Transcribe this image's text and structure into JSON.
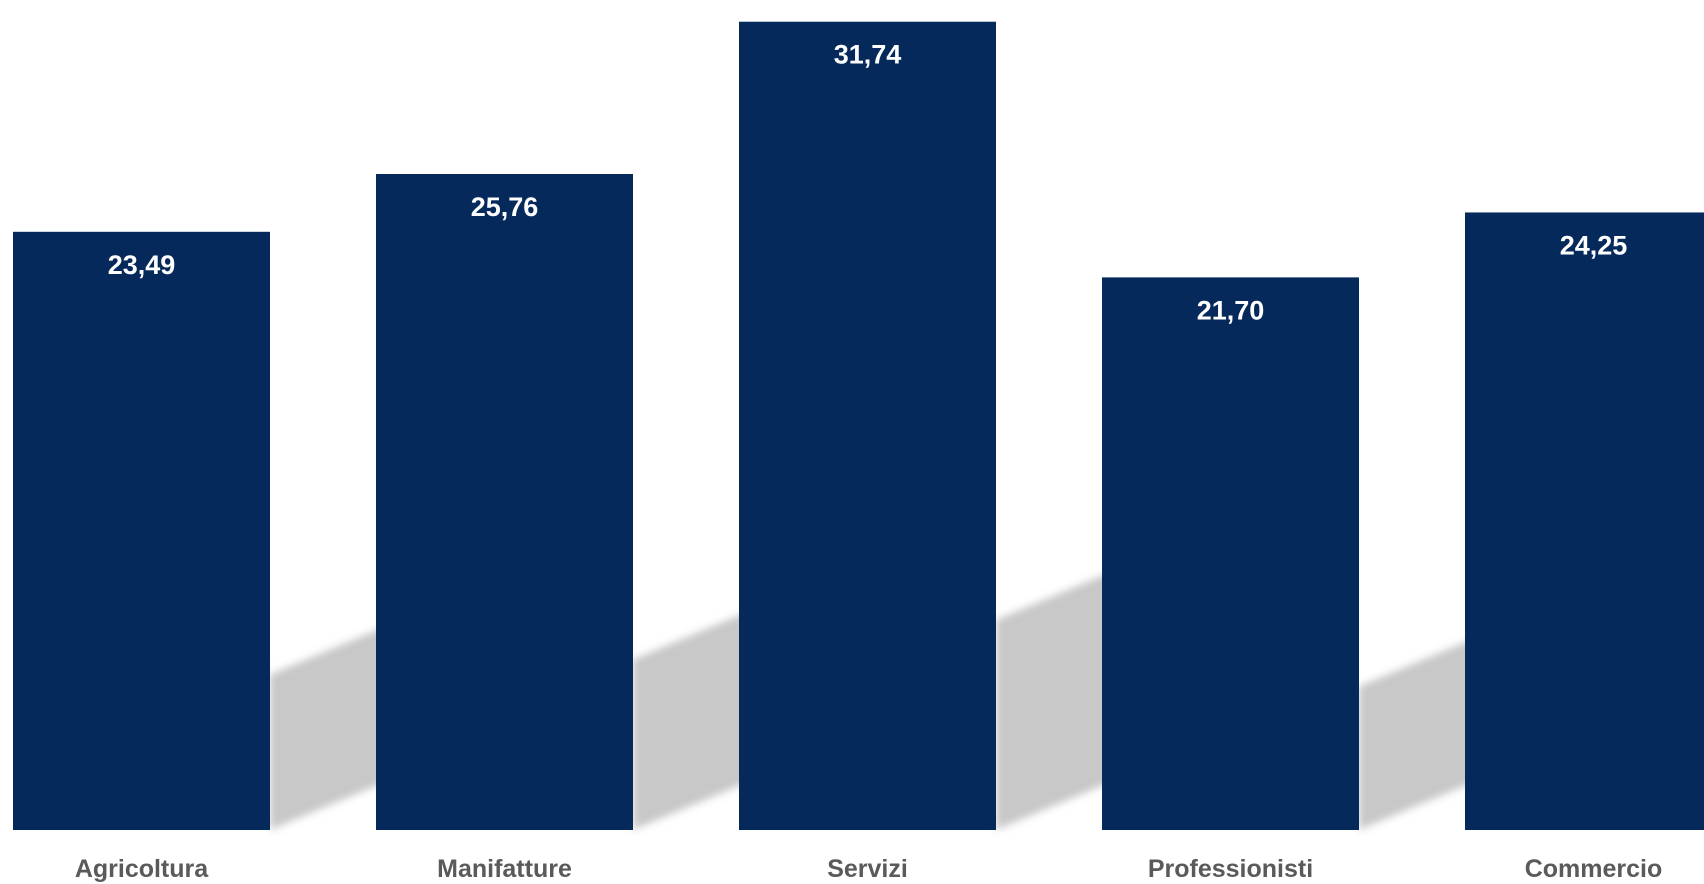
{
  "chart_data": {
    "type": "bar",
    "categories": [
      "Agricoltura",
      "Manifatture",
      "Servizi",
      "Professionisti",
      "Commercio"
    ],
    "values": [
      23.49,
      25.76,
      31.74,
      21.7,
      24.25
    ],
    "value_labels": [
      "23,49",
      "25,76",
      "31,74",
      "21,70",
      "24,25"
    ],
    "title": "",
    "xlabel": "",
    "ylabel": "",
    "ylim": [
      0,
      32.2
    ],
    "grid": false,
    "legend": "none",
    "colors": {
      "bar": "#06295c",
      "shadow": "#c8c8c8",
      "value_label": "#ffffff",
      "category_label": "#5a5a5a"
    }
  }
}
